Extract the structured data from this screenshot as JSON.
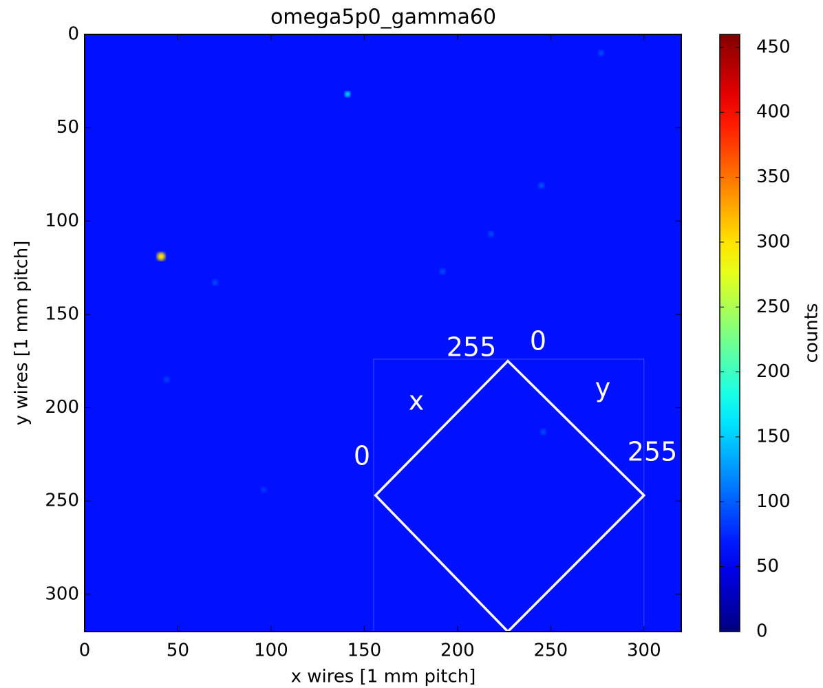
{
  "chart_data": {
    "type": "heatmap",
    "title": "omega5p0_gamma60",
    "x_label": "x wires [1 mm pitch]",
    "y_label": "y wires [1 mm pitch]",
    "xlim": [
      0,
      320
    ],
    "ylim": [
      320,
      0
    ],
    "xticks": [
      0,
      50,
      100,
      150,
      200,
      250,
      300
    ],
    "yticks": [
      0,
      50,
      100,
      150,
      200,
      250,
      300
    ],
    "colorbar_label": "counts",
    "clim": [
      0,
      460
    ],
    "cticks": [
      0,
      50,
      100,
      150,
      200,
      250,
      300,
      350,
      400,
      450
    ],
    "colormap": "jet",
    "background_value": 65,
    "spots": [
      {
        "x": 41,
        "y": 119,
        "value": 300
      },
      {
        "x": 141,
        "y": 32,
        "value": 170
      },
      {
        "x": 277,
        "y": 10,
        "value": 95
      },
      {
        "x": 245,
        "y": 81,
        "value": 100
      },
      {
        "x": 218,
        "y": 107,
        "value": 95
      },
      {
        "x": 192,
        "y": 127,
        "value": 95
      },
      {
        "x": 70,
        "y": 133,
        "value": 95
      },
      {
        "x": 44,
        "y": 185,
        "value": 90
      },
      {
        "x": 246,
        "y": 213,
        "value": 95
      },
      {
        "x": 96,
        "y": 244,
        "value": 85
      }
    ],
    "annotations": [
      "255",
      "0",
      "x",
      "y",
      "0",
      "255"
    ]
  }
}
